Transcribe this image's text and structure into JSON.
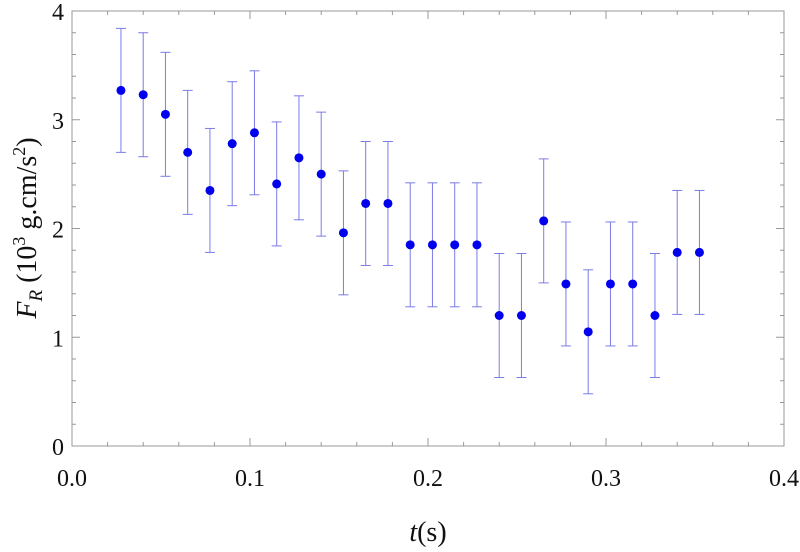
{
  "chart_data": {
    "type": "scatter",
    "title": "",
    "xlabel": {
      "var": "t",
      "unit": "(s)"
    },
    "ylabel": {
      "var": "F",
      "sub": "R",
      "unit_open": " (10",
      "sup1": "3",
      "unit_mid": " g.cm/s",
      "sup2": "2",
      "unit_close": ")"
    },
    "xlim": [
      0,
      0.4
    ],
    "ylim": [
      0,
      4
    ],
    "x_ticks": [
      0.0,
      0.1,
      0.2,
      0.3,
      0.4
    ],
    "x_tick_labels": [
      "0.0",
      "0.1",
      "0.2",
      "0.3",
      "0.4"
    ],
    "y_ticks": [
      0,
      1,
      2,
      3,
      4
    ],
    "y_tick_labels": [
      "0",
      "1",
      "2",
      "3",
      "4"
    ],
    "grid": false,
    "legend": "none",
    "colors": {
      "point": "#0000ee",
      "error_bar": "#7b7be6",
      "frame": "#999999"
    },
    "points": [
      {
        "x": 0.0275,
        "y": 3.27,
        "err": 0.57
      },
      {
        "x": 0.04,
        "y": 3.23,
        "err": 0.57
      },
      {
        "x": 0.0525,
        "y": 3.05,
        "err": 0.57
      },
      {
        "x": 0.065,
        "y": 2.7,
        "err": 0.57
      },
      {
        "x": 0.0775,
        "y": 2.35,
        "err": 0.57
      },
      {
        "x": 0.09,
        "y": 2.78,
        "err": 0.57
      },
      {
        "x": 0.1025,
        "y": 2.88,
        "err": 0.57
      },
      {
        "x": 0.115,
        "y": 2.41,
        "err": 0.57
      },
      {
        "x": 0.1275,
        "y": 2.65,
        "err": 0.57
      },
      {
        "x": 0.14,
        "y": 2.5,
        "err": 0.57
      },
      {
        "x": 0.1525,
        "y": 1.96,
        "err": 0.57
      },
      {
        "x": 0.165,
        "y": 2.23,
        "err": 0.57
      },
      {
        "x": 0.1775,
        "y": 2.23,
        "err": 0.57
      },
      {
        "x": 0.19,
        "y": 1.85,
        "err": 0.57
      },
      {
        "x": 0.2025,
        "y": 1.85,
        "err": 0.57
      },
      {
        "x": 0.215,
        "y": 1.85,
        "err": 0.57
      },
      {
        "x": 0.2275,
        "y": 1.85,
        "err": 0.57
      },
      {
        "x": 0.24,
        "y": 1.2,
        "err": 0.57
      },
      {
        "x": 0.2525,
        "y": 1.2,
        "err": 0.57
      },
      {
        "x": 0.265,
        "y": 2.07,
        "err": 0.57
      },
      {
        "x": 0.2775,
        "y": 1.49,
        "err": 0.57
      },
      {
        "x": 0.29,
        "y": 1.05,
        "err": 0.57
      },
      {
        "x": 0.3025,
        "y": 1.49,
        "err": 0.57
      },
      {
        "x": 0.315,
        "y": 1.49,
        "err": 0.57
      },
      {
        "x": 0.3275,
        "y": 1.2,
        "err": 0.57
      },
      {
        "x": 0.34,
        "y": 1.78,
        "err": 0.57
      },
      {
        "x": 0.3525,
        "y": 1.78,
        "err": 0.57
      }
    ]
  }
}
